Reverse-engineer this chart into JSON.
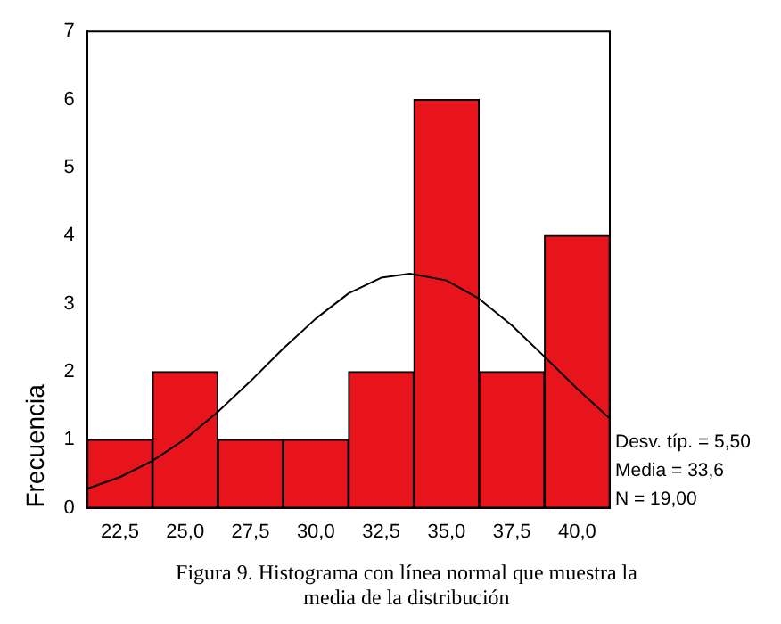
{
  "chart_data": {
    "type": "histogram",
    "ylabel": "Frecuencia",
    "bins": [
      21.25,
      23.75,
      26.25,
      28.75,
      31.25,
      33.75,
      36.25,
      38.75,
      41.25
    ],
    "values": [
      1,
      2,
      1,
      1,
      2,
      6,
      2,
      4
    ],
    "color": "#e8141c",
    "series": [
      {
        "type": "line",
        "color": "#000000",
        "x": [
          21.25,
          22.5,
          23.75,
          25,
          26.25,
          27.5,
          28.75,
          30,
          31.25,
          32.5,
          33.6,
          35,
          36.25,
          37.5,
          38.75,
          40,
          41.25
        ],
        "values": [
          0.28,
          0.45,
          0.69,
          1.01,
          1.41,
          1.86,
          2.34,
          2.78,
          3.15,
          3.38,
          3.44,
          3.34,
          3.07,
          2.68,
          2.22,
          1.75,
          1.31
        ]
      }
    ],
    "xlim": [
      21.25,
      41.25
    ],
    "xticks": [
      {
        "value": 22.5,
        "label": "22,5"
      },
      {
        "value": 25,
        "label": "25,0"
      },
      {
        "value": 27.5,
        "label": "27,5"
      },
      {
        "value": 30,
        "label": "30,0"
      },
      {
        "value": 32.5,
        "label": "32,5"
      },
      {
        "value": 35,
        "label": "35,0"
      },
      {
        "value": 37.5,
        "label": "37,5"
      },
      {
        "value": 40,
        "label": "40,0"
      }
    ],
    "ylim": [
      0,
      7
    ],
    "yticks": [
      0,
      1,
      2,
      3,
      4,
      5,
      6,
      7
    ],
    "grid": false,
    "legend": false,
    "marker": "none",
    "annotations": [
      "Desv. típ. = 5,50",
      "Media = 33,6",
      "N = 19,00",
      "Figura 9. Histograma con línea normal que muestra la media de la distribución"
    ]
  }
}
